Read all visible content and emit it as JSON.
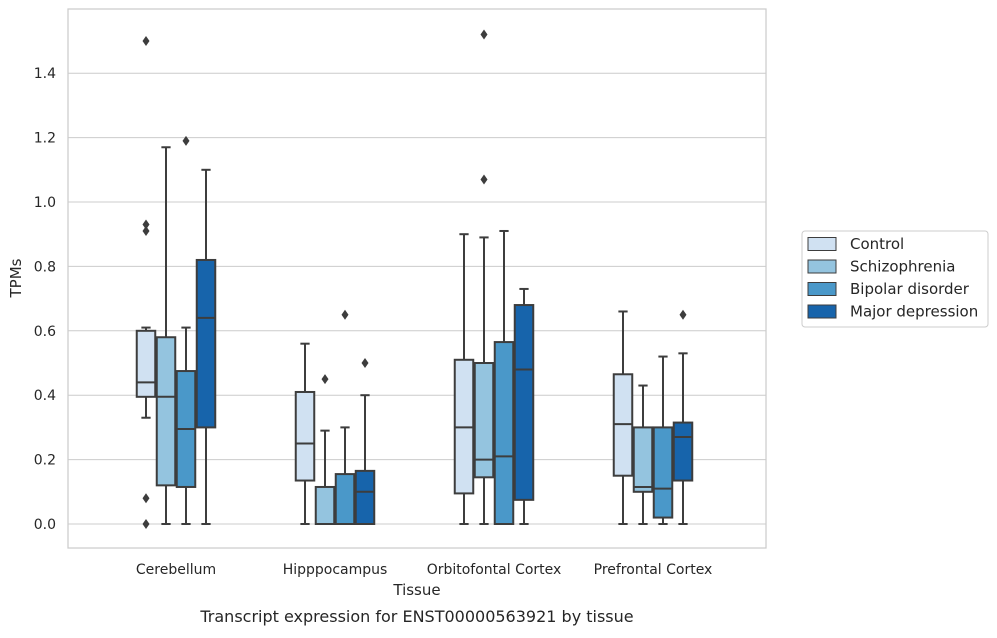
{
  "caption": "Transcript expression for ENST00000563921 by tissue",
  "chart_data": {
    "type": "boxplot",
    "xlabel": "Tissue",
    "ylabel": "TPMs",
    "ylim": [
      -0.07,
      1.6
    ],
    "yticks": [
      "0.0",
      "0.2",
      "0.4",
      "0.6",
      "0.8",
      "1.0",
      "1.2",
      "1.4"
    ],
    "grid": "horizontal",
    "legend_position": "right",
    "categories": [
      "Cerebellum",
      "Hipppocampus",
      "Orbitofontal Cortex",
      "Prefrontal Cortex"
    ],
    "series": [
      {
        "name": "Control",
        "color": "#d0e1f2",
        "boxes": [
          {
            "min": 0.33,
            "q1": 0.395,
            "median": 0.44,
            "q3": 0.6,
            "max": 0.61,
            "outliers": [
              1.5,
              0.93,
              0.91,
              0.08,
              0.0
            ]
          },
          {
            "min": 0.0,
            "q1": 0.135,
            "median": 0.25,
            "q3": 0.41,
            "max": 0.56,
            "outliers": []
          },
          {
            "min": 0.0,
            "q1": 0.095,
            "median": 0.3,
            "q3": 0.51,
            "max": 0.9,
            "outliers": []
          },
          {
            "min": 0.0,
            "q1": 0.15,
            "median": 0.31,
            "q3": 0.465,
            "max": 0.66,
            "outliers": []
          }
        ]
      },
      {
        "name": "Schizophrenia",
        "color": "#94c4df",
        "boxes": [
          {
            "min": 0.0,
            "q1": 0.12,
            "median": 0.395,
            "q3": 0.58,
            "max": 1.17,
            "outliers": []
          },
          {
            "min": 0.0,
            "q1": 0.0,
            "median": 0.0,
            "q3": 0.115,
            "max": 0.29,
            "outliers": [
              0.45
            ]
          },
          {
            "min": 0.0,
            "q1": 0.145,
            "median": 0.2,
            "q3": 0.5,
            "max": 0.89,
            "outliers": [
              1.52,
              1.07
            ]
          },
          {
            "min": 0.0,
            "q1": 0.1,
            "median": 0.115,
            "q3": 0.3,
            "max": 0.43,
            "outliers": []
          }
        ]
      },
      {
        "name": "Bipolar disorder",
        "color": "#4a98c9",
        "boxes": [
          {
            "min": 0.0,
            "q1": 0.115,
            "median": 0.295,
            "q3": 0.475,
            "max": 0.61,
            "outliers": [
              1.19
            ]
          },
          {
            "min": 0.0,
            "q1": 0.0,
            "median": 0.0,
            "q3": 0.155,
            "max": 0.3,
            "outliers": [
              0.65
            ]
          },
          {
            "min": 0.0,
            "q1": 0.0,
            "median": 0.21,
            "q3": 0.565,
            "max": 0.91,
            "outliers": []
          },
          {
            "min": 0.0,
            "q1": 0.02,
            "median": 0.11,
            "q3": 0.3,
            "max": 0.52,
            "outliers": []
          }
        ]
      },
      {
        "name": "Major depression",
        "color": "#1764ab",
        "boxes": [
          {
            "min": 0.0,
            "q1": 0.3,
            "median": 0.64,
            "q3": 0.82,
            "max": 1.1,
            "outliers": []
          },
          {
            "min": 0.0,
            "q1": 0.0,
            "median": 0.1,
            "q3": 0.165,
            "max": 0.4,
            "outliers": [
              0.5
            ]
          },
          {
            "min": 0.0,
            "q1": 0.075,
            "median": 0.48,
            "q3": 0.68,
            "max": 0.73,
            "outliers": []
          },
          {
            "min": 0.0,
            "q1": 0.135,
            "median": 0.27,
            "q3": 0.315,
            "max": 0.53,
            "outliers": [
              0.65
            ]
          }
        ]
      }
    ]
  }
}
